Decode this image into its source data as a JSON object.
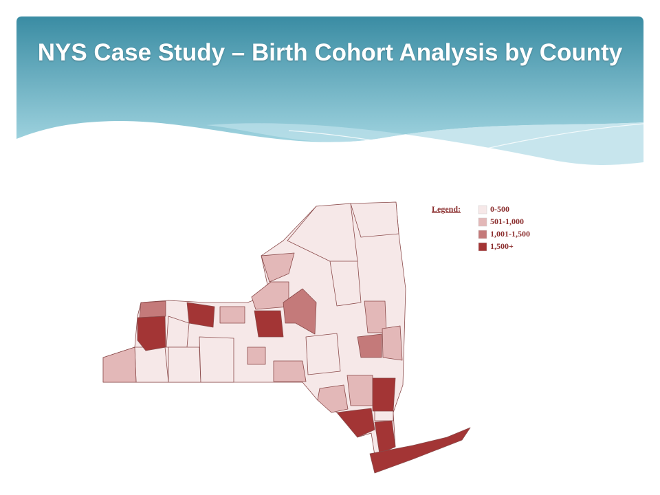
{
  "header": {
    "title": "NYS Case Study – Birth Cohort Analysis by County"
  },
  "legend": {
    "label": "Legend:",
    "items": [
      {
        "label": "0-500",
        "color": "#f6e8e8"
      },
      {
        "label": "501-1,000",
        "color": "#e3b8b8"
      },
      {
        "label": "1,001-1,500",
        "color": "#c47a7a"
      },
      {
        "label": "1,500+",
        "color": "#a33535"
      }
    ]
  }
}
